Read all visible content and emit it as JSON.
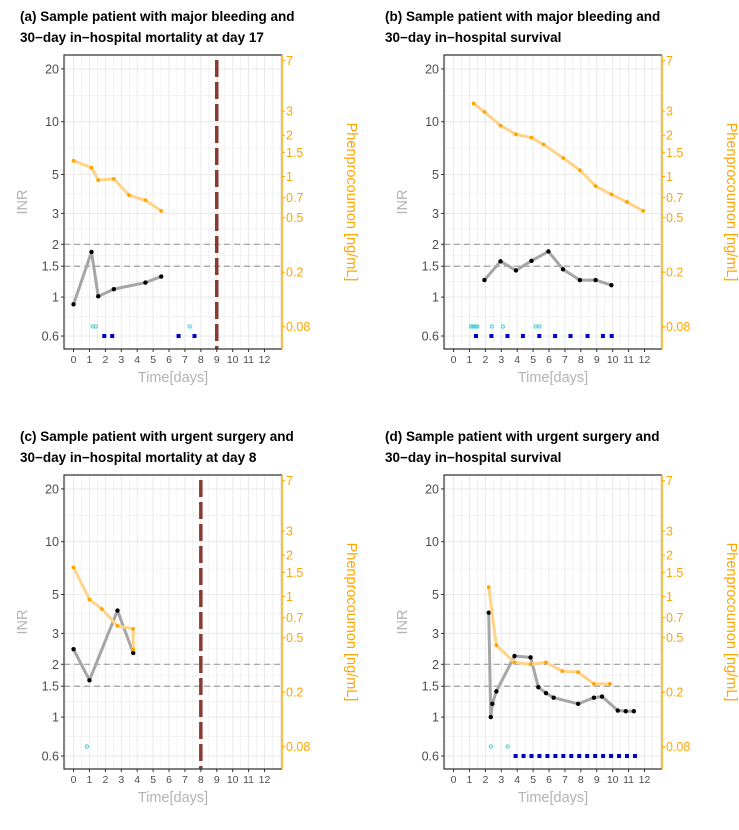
{
  "chart_data": [
    {
      "type": "line",
      "title_lines": [
        "(a) Sample patient with major bleeding and",
        "30−day in−hospital mortality at day 17"
      ],
      "xlabel": "Time[days]",
      "ylabel": "INR",
      "y2label": "Phenprocoumon [ng/mL]",
      "xlim": [
        -0.6,
        13.1
      ],
      "ylim": [
        0.506,
        24
      ],
      "y2lim": [
        0.055,
        7.7
      ],
      "x_ticks": [
        "0",
        "1",
        "2",
        "3",
        "4",
        "5",
        "6",
        "7",
        "8",
        "9",
        "10",
        "11",
        "12"
      ],
      "y_ticks": [
        "20",
        "10",
        "5",
        "3",
        "2",
        "1.5",
        "1",
        "0.6"
      ],
      "y2_ticks": [
        "7",
        "3",
        "2",
        "1.5",
        "1",
        "0.7",
        "0.5",
        "0.2",
        "0.08"
      ],
      "reference_lines_inr": [
        2,
        1.5
      ],
      "event_line_day": 9,
      "series": [
        {
          "name": "INR",
          "color": "#000000",
          "line_color": "#a6a6a6",
          "x": [
            0,
            1.13,
            1.55,
            2.53,
            4.52,
            5.51
          ],
          "y": [
            0.91,
            1.81,
            1.01,
            1.11,
            1.21,
            1.31
          ]
        },
        {
          "name": "Phenprocoumon",
          "color": "#ffa500",
          "line_color": "#ffd48a",
          "x": [
            0,
            1.13,
            1.55,
            2.53,
            3.48,
            4.52,
            5.51
          ],
          "y": [
            1.3,
            1.16,
            0.94,
            0.96,
            0.73,
            0.67,
            0.56
          ]
        }
      ],
      "cyan_markers_days": [
        1.2,
        1.4,
        7.3
      ],
      "blue_markers_days": [
        1.93,
        2.43,
        6.6,
        7.6
      ]
    },
    {
      "type": "line",
      "title_lines": [
        "(b) Sample patient with major bleeding and",
        "30−day in−hospital survival"
      ],
      "xlabel": "Time[days]",
      "ylabel": "INR",
      "y2label": "Phenprocoumon [ng/mL]",
      "xlim": [
        -0.6,
        13.1
      ],
      "ylim": [
        0.506,
        24
      ],
      "y2lim": [
        0.055,
        7.7
      ],
      "x_ticks": [
        "0",
        "1",
        "2",
        "3",
        "4",
        "5",
        "6",
        "7",
        "8",
        "9",
        "10",
        "11",
        "12"
      ],
      "y_ticks": [
        "20",
        "10",
        "5",
        "3",
        "2",
        "1.5",
        "1",
        "0.6"
      ],
      "y2_ticks": [
        "7",
        "3",
        "2",
        "1.5",
        "1",
        "0.7",
        "0.5",
        "0.2",
        "0.08"
      ],
      "reference_lines_inr": [
        2,
        1.5
      ],
      "event_line_day": null,
      "series": [
        {
          "name": "INR",
          "color": "#000000",
          "line_color": "#a6a6a6",
          "x": [
            1.94,
            2.95,
            3.92,
            4.9,
            5.96,
            6.88,
            7.94,
            8.93,
            9.92
          ],
          "y": [
            1.25,
            1.6,
            1.42,
            1.61,
            1.82,
            1.44,
            1.25,
            1.25,
            1.17
          ]
        },
        {
          "name": "Phenprocoumon",
          "color": "#ffa500",
          "line_color": "#ffd48a",
          "x": [
            1.26,
            1.94,
            2.95,
            3.92,
            4.9,
            5.66,
            6.9,
            7.94,
            8.93,
            9.92,
            10.9,
            11.92
          ],
          "y": [
            3.41,
            2.96,
            2.35,
            2.03,
            1.92,
            1.71,
            1.36,
            1.11,
            0.85,
            0.74,
            0.65,
            0.56
          ]
        }
      ],
      "cyan_markers_days": [
        1.1,
        1.2,
        1.3,
        1.4,
        1.5,
        2.4,
        3.1,
        5.16,
        5.4
      ],
      "blue_markers_days": [
        1.41,
        2.38,
        3.39,
        4.36,
        5.39,
        6.38,
        7.35,
        8.42,
        9.39,
        9.94
      ]
    },
    {
      "type": "line",
      "title_lines": [
        "(c) Sample patient with urgent surgery and",
        "30−day in−hospital mortality at day 8"
      ],
      "xlabel": "Time[days]",
      "ylabel": "INR",
      "y2label": "Phenprocoumon [ng/mL]",
      "xlim": [
        -0.6,
        13.1
      ],
      "ylim": [
        0.506,
        24
      ],
      "y2lim": [
        0.055,
        7.7
      ],
      "x_ticks": [
        "0",
        "1",
        "2",
        "3",
        "4",
        "5",
        "6",
        "7",
        "8",
        "9",
        "10",
        "11",
        "12"
      ],
      "y_ticks": [
        "20",
        "10",
        "5",
        "3",
        "2",
        "1.5",
        "1",
        "0.6"
      ],
      "y2_ticks": [
        "7",
        "3",
        "2",
        "1.5",
        "1",
        "0.7",
        "0.5",
        "0.2",
        "0.08"
      ],
      "reference_lines_inr": [
        2,
        1.5
      ],
      "event_line_day": 8,
      "series": [
        {
          "name": "INR",
          "color": "#000000",
          "line_color": "#a6a6a6",
          "x": [
            0,
            1.0,
            2.76,
            3.75
          ],
          "y": [
            2.44,
            1.62,
            4.05,
            2.32
          ]
        },
        {
          "name": "Phenprocoumon",
          "color": "#ffa500",
          "line_color": "#ffd48a",
          "x": [
            0,
            1.0,
            1.78,
            2.76,
            3.75,
            3.75
          ],
          "y": [
            1.63,
            0.95,
            0.81,
            0.61,
            0.58,
            0.41
          ]
        }
      ],
      "cyan_markers_days": [
        0.84
      ],
      "blue_markers_days": []
    },
    {
      "type": "line",
      "title_lines": [
        "(d) Sample patient with urgent surgery and",
        "30−day in−hospital survival"
      ],
      "xlabel": "Time[days]",
      "ylabel": "INR",
      "y2label": "Phenprocoumon [ng/mL]",
      "xlim": [
        -0.6,
        13.1
      ],
      "ylim": [
        0.506,
        24
      ],
      "y2lim": [
        0.055,
        7.7
      ],
      "x_ticks": [
        "0",
        "1",
        "2",
        "3",
        "4",
        "5",
        "6",
        "7",
        "8",
        "9",
        "10",
        "11",
        "12"
      ],
      "y_ticks": [
        "20",
        "10",
        "5",
        "3",
        "2",
        "1.5",
        "1",
        "0.6"
      ],
      "y2_ticks": [
        "7",
        "3",
        "2",
        "1.5",
        "1",
        "0.7",
        "0.5",
        "0.2",
        "0.08"
      ],
      "reference_lines_inr": [
        2,
        1.5
      ],
      "event_line_day": null,
      "series": [
        {
          "name": "INR",
          "color": "#000000",
          "line_color": "#a6a6a6",
          "x": [
            2.21,
            2.34,
            2.44,
            2.69,
            3.83,
            4.84,
            5.33,
            5.81,
            6.29,
            7.83,
            8.82,
            9.33,
            10.32,
            10.82,
            11.33
          ],
          "y": [
            3.94,
            1.0,
            1.19,
            1.4,
            2.23,
            2.19,
            1.48,
            1.37,
            1.29,
            1.19,
            1.29,
            1.31,
            1.09,
            1.08,
            1.08
          ]
        },
        {
          "name": "Phenprocoumon",
          "color": "#ffa500",
          "line_color": "#ffd48a",
          "x": [
            2.21,
            2.69,
            3.83,
            4.84,
            5.81,
            6.84,
            7.83,
            8.82,
            9.83
          ],
          "y": [
            1.17,
            0.44,
            0.33,
            0.32,
            0.33,
            0.285,
            0.28,
            0.23,
            0.23
          ]
        }
      ],
      "cyan_markers_days": [
        2.34,
        3.4
      ],
      "blue_markers_days": [
        3.9,
        4.4,
        4.9,
        5.4,
        5.9,
        6.4,
        6.9,
        7.4,
        7.9,
        8.4,
        8.9,
        9.4,
        9.9,
        10.4,
        10.9,
        11.4
      ]
    }
  ],
  "colors": {
    "axis2": "#ffa500",
    "event_line": "#8b3a2f",
    "cyan": "#3fd0d0",
    "blue": "#0000cc",
    "grid": "#ebebeb",
    "ref_line": "#a0a0a0",
    "axis_text": "#4d4d4d",
    "label_gray": "#b3b3b3"
  }
}
